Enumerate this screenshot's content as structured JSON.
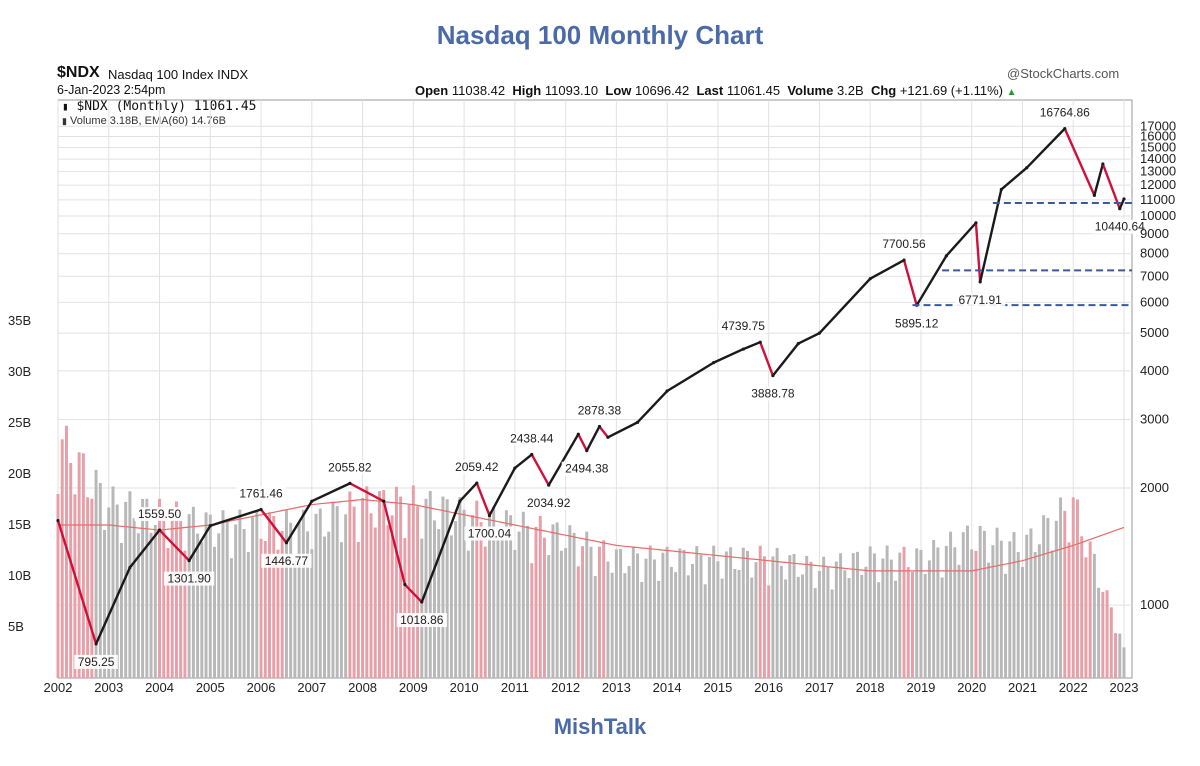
{
  "page": {
    "title": "Nasdaq 100 Monthly Chart",
    "footer": "MishTalk"
  },
  "header": {
    "symbol": "$NDX",
    "name": "Nasdaq 100 Index INDX",
    "date": "6-Jan-2023 2:54pm",
    "copyright": "@StockCharts.com",
    "open_label": "Open",
    "open": "11038.42",
    "high_label": "High",
    "high": "11093.10",
    "low_label": "Low",
    "low": "10696.42",
    "last_label": "Last",
    "last": "11061.45",
    "volume_label": "Volume",
    "volume": "3.2B",
    "chg_label": "Chg",
    "chg": "+121.69 (+1.11%)",
    "legend_price": "$NDX (Monthly) 11061.45",
    "legend_volume": "Volume 3.18B, EMA(60) 14.76B"
  },
  "colors": {
    "up": "#1a1a1a",
    "down": "#d0103a",
    "vol_up": "#b8b8b8",
    "vol_down": "#e8a0a8",
    "ema": "#e86a6a",
    "dash": "#3a5a9a",
    "title": "#4a6aa8"
  },
  "chart_data": {
    "type": "line",
    "title": "Nasdaq 100 Monthly Chart",
    "y_scale": "log",
    "ylim": [
      650,
      18500
    ],
    "y_ticks": [
      1000,
      2000,
      3000,
      4000,
      5000,
      6000,
      7000,
      8000,
      9000,
      10000,
      11000,
      12000,
      13000,
      14000,
      15000,
      16000,
      17000
    ],
    "x_ticks": [
      "2002",
      "2003",
      "2004",
      "2005",
      "2006",
      "2007",
      "2008",
      "2009",
      "2010",
      "2011",
      "2012",
      "2013",
      "2014",
      "2015",
      "2016",
      "2017",
      "2018",
      "2019",
      "2020",
      "2021",
      "2022",
      "2023"
    ],
    "volume_ticks": [
      "5B",
      "10B",
      "15B",
      "20B",
      "25B",
      "30B",
      "35B"
    ],
    "grid": true,
    "series": [
      {
        "name": "$NDX (Monthly)",
        "x": [
          "2002-01",
          "2002-10",
          "2003-06",
          "2004-01",
          "2004-08",
          "2005-01",
          "2006-01",
          "2006-07",
          "2007-01",
          "2007-10",
          "2008-06",
          "2008-11",
          "2009-03",
          "2009-12",
          "2010-04",
          "2010-07",
          "2011-01",
          "2011-05",
          "2011-09",
          "2012-04",
          "2012-06",
          "2012-09",
          "2012-11",
          "2013-06",
          "2014-01",
          "2014-12",
          "2015-07",
          "2015-11",
          "2016-02",
          "2016-08",
          "2017-01",
          "2018-01",
          "2018-09",
          "2018-12",
          "2019-07",
          "2020-02",
          "2020-03",
          "2020-08",
          "2021-02",
          "2021-11",
          "2022-06",
          "2022-08",
          "2022-12",
          "2023-01"
        ],
        "values": [
          1650,
          795.25,
          1250,
          1559.5,
          1301.9,
          1600,
          1761.46,
          1446.77,
          1850,
          2055.82,
          1850,
          1130,
          1018.86,
          1850,
          2059.42,
          1700.04,
          2250,
          2438.44,
          2034.92,
          2750,
          2494.38,
          2878.38,
          2700,
          2950,
          3550,
          4200,
          4550,
          4739.75,
          3888.78,
          4700,
          5000,
          6900,
          7700.56,
          5895.12,
          7900,
          9600,
          6771.91,
          11700,
          13300,
          16764.86,
          11300,
          13600,
          10440.64,
          11061.45
        ]
      }
    ],
    "annotations": [
      {
        "label": "795.25",
        "x": "2002-10",
        "value": 795.25
      },
      {
        "label": "1559.50",
        "x": "2004-01",
        "value": 1559.5
      },
      {
        "label": "1301.90",
        "x": "2004-08",
        "value": 1301.9
      },
      {
        "label": "1761.46",
        "x": "2006-01",
        "value": 1761.46
      },
      {
        "label": "1446.77",
        "x": "2006-07",
        "value": 1446.77
      },
      {
        "label": "2055.82",
        "x": "2007-10",
        "value": 2055.82
      },
      {
        "label": "1018.86",
        "x": "2009-03",
        "value": 1018.86
      },
      {
        "label": "2059.42",
        "x": "2010-04",
        "value": 2059.42
      },
      {
        "label": "1700.04",
        "x": "2010-07",
        "value": 1700.04
      },
      {
        "label": "2438.44",
        "x": "2011-05",
        "value": 2438.44
      },
      {
        "label": "2034.92",
        "x": "2011-09",
        "value": 2034.92
      },
      {
        "label": "2878.38",
        "x": "2012-09",
        "value": 2878.38
      },
      {
        "label": "2494.38",
        "x": "2012-06",
        "value": 2494.38
      },
      {
        "label": "4739.75",
        "x": "2015-07",
        "value": 4739.75
      },
      {
        "label": "3888.78",
        "x": "2016-02",
        "value": 3888.78
      },
      {
        "label": "7700.56",
        "x": "2018-09",
        "value": 7700.56
      },
      {
        "label": "5895.12",
        "x": "2018-12",
        "value": 5895.12
      },
      {
        "label": "6771.91",
        "x": "2020-03",
        "value": 6771.91
      },
      {
        "label": "16764.86",
        "x": "2021-11",
        "value": 16764.86
      },
      {
        "label": "10440.64",
        "x": "2022-12",
        "value": 10440.64
      }
    ],
    "reference_lines": [
      {
        "value": 10800,
        "from": "2020-06",
        "to": "2023-01"
      },
      {
        "value": 7250,
        "from": "2019-06",
        "to": "2023-01"
      },
      {
        "value": 5900,
        "from": "2018-11",
        "to": "2023-01"
      }
    ],
    "volume": {
      "name": "Volume",
      "x": [
        "2002",
        "2003",
        "2004",
        "2005",
        "2006",
        "2007",
        "2008",
        "2009",
        "2010",
        "2011",
        "2012",
        "2013",
        "2014",
        "2015",
        "2016",
        "2017",
        "2018",
        "2019",
        "2020",
        "2021",
        "2022",
        "2023"
      ],
      "values_B": [
        22,
        16,
        15,
        14,
        14,
        14,
        16,
        16,
        15,
        14,
        13,
        11,
        11,
        11,
        11,
        10,
        11,
        11,
        13,
        12,
        16,
        3
      ],
      "ema60_B": [
        15,
        15,
        14.5,
        15,
        16,
        17,
        17.5,
        17,
        16,
        15,
        14,
        13,
        12.5,
        12,
        11.5,
        11,
        10.5,
        10.5,
        10.5,
        11.5,
        13,
        14.76
      ]
    }
  }
}
